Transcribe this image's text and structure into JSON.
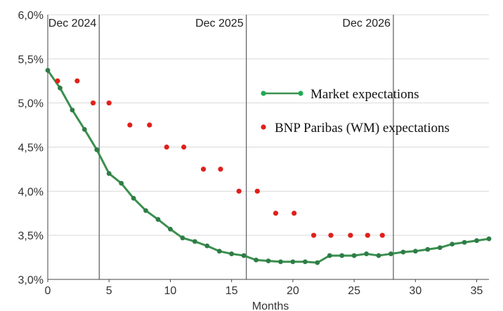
{
  "chart_data": {
    "type": "line",
    "xlabel": "Months",
    "ylabel": "",
    "xlim": [
      0,
      36
    ],
    "ylim": [
      3.0,
      6.0
    ],
    "x_ticks": [
      0,
      5,
      10,
      15,
      20,
      25,
      30,
      35
    ],
    "y_ticks": [
      {
        "value": 3.0,
        "label": "3,0%"
      },
      {
        "value": 3.5,
        "label": "3,5%"
      },
      {
        "value": 4.0,
        "label": "4,0%"
      },
      {
        "value": 4.5,
        "label": "4,5%"
      },
      {
        "value": 5.0,
        "label": "5,0%"
      },
      {
        "value": 5.5,
        "label": "5,5%"
      },
      {
        "value": 6.0,
        "label": "6,0%"
      }
    ],
    "grid": true,
    "legend_position": "right",
    "period_markers": [
      {
        "x": 4.2,
        "label": "Dec 2024"
      },
      {
        "x": 16.2,
        "label": "Dec 2025"
      },
      {
        "x": 28.2,
        "label": "Dec 2026"
      }
    ],
    "series": [
      {
        "name": "Market expectations",
        "style": "line-with-markers",
        "color": "#3a8f4e",
        "x": [
          0,
          1,
          2,
          3,
          4,
          5,
          6,
          7,
          8,
          9,
          10,
          11,
          12,
          13,
          14,
          15,
          16,
          17,
          18,
          19,
          20,
          21,
          22,
          23,
          24,
          25,
          26,
          27,
          28,
          29,
          30,
          31,
          32,
          33,
          34,
          35,
          36
        ],
        "y": [
          5.37,
          5.17,
          4.92,
          4.7,
          4.47,
          4.2,
          4.09,
          3.92,
          3.78,
          3.68,
          3.57,
          3.47,
          3.43,
          3.38,
          3.32,
          3.29,
          3.27,
          3.22,
          3.21,
          3.2,
          3.2,
          3.2,
          3.19,
          3.27,
          3.27,
          3.27,
          3.29,
          3.27,
          3.29,
          3.31,
          3.32,
          3.34,
          3.36,
          3.4,
          3.42,
          3.44,
          3.46
        ]
      },
      {
        "name": "BNP Paribas (WM) expectations",
        "style": "markers",
        "color": "#e0201b",
        "x": [
          0.8,
          2.4,
          3.7,
          5.0,
          6.7,
          8.3,
          9.7,
          11.1,
          12.7,
          14.1,
          15.6,
          17.1,
          18.6,
          20.1,
          21.7,
          23.1,
          24.7,
          26.1,
          27.3
        ],
        "y": [
          5.25,
          5.25,
          5.0,
          5.0,
          4.75,
          4.75,
          4.5,
          4.5,
          4.25,
          4.25,
          4.0,
          4.0,
          3.75,
          3.75,
          3.5,
          3.5,
          3.5,
          3.5,
          3.5
        ]
      }
    ]
  }
}
